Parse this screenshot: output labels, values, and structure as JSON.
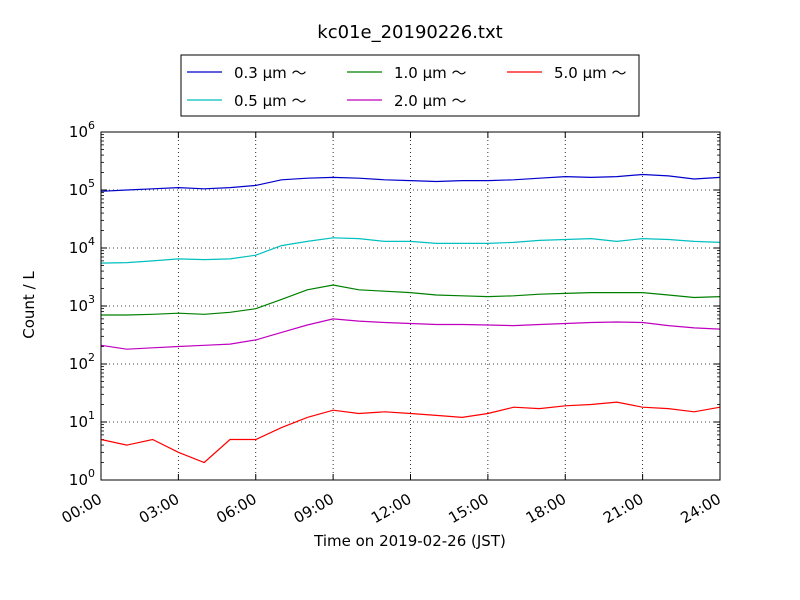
{
  "chart_data": {
    "type": "line",
    "title": "kc01e_20190226.txt",
    "xlabel": "Time on 2019-02-26 (JST)",
    "ylabel": "Count / L",
    "yscale": "log",
    "ylim": [
      1,
      1000000
    ],
    "xlim": [
      "00:00",
      "24:00"
    ],
    "x_ticks": [
      "00:00",
      "03:00",
      "06:00",
      "09:00",
      "12:00",
      "15:00",
      "18:00",
      "21:00",
      "24:00"
    ],
    "y_ticks": [
      {
        "base": "10",
        "exp": "0"
      },
      {
        "base": "10",
        "exp": "1"
      },
      {
        "base": "10",
        "exp": "2"
      },
      {
        "base": "10",
        "exp": "3"
      },
      {
        "base": "10",
        "exp": "4"
      },
      {
        "base": "10",
        "exp": "5"
      },
      {
        "base": "10",
        "exp": "6"
      }
    ],
    "grid": true,
    "legend_position": "top-center",
    "x": [
      "00:00",
      "01:00",
      "02:00",
      "03:00",
      "04:00",
      "05:00",
      "06:00",
      "07:00",
      "08:00",
      "09:00",
      "10:00",
      "11:00",
      "12:00",
      "13:00",
      "14:00",
      "15:00",
      "16:00",
      "17:00",
      "18:00",
      "19:00",
      "20:00",
      "21:00",
      "22:00",
      "23:00",
      "24:00"
    ],
    "series": [
      {
        "name": "0.3 μm 〜",
        "color": "#0000cc",
        "values": [
          95000,
          100000,
          105000,
          110000,
          105000,
          110000,
          120000,
          150000,
          160000,
          165000,
          160000,
          150000,
          145000,
          140000,
          145000,
          145000,
          150000,
          160000,
          170000,
          165000,
          170000,
          185000,
          175000,
          155000,
          165000
        ]
      },
      {
        "name": "0.5 μm 〜",
        "color": "#00bfbf",
        "values": [
          5500,
          5600,
          6000,
          6500,
          6300,
          6500,
          7500,
          11000,
          13000,
          15000,
          14500,
          13000,
          13000,
          12000,
          12000,
          12000,
          12500,
          13500,
          14000,
          14500,
          13000,
          14500,
          14000,
          13000,
          12500
        ]
      },
      {
        "name": "1.0 μm 〜",
        "color": "#008000",
        "values": [
          700,
          700,
          720,
          750,
          720,
          780,
          900,
          1300,
          1900,
          2300,
          1900,
          1800,
          1700,
          1550,
          1500,
          1450,
          1500,
          1600,
          1650,
          1700,
          1700,
          1700,
          1550,
          1400,
          1450
        ]
      },
      {
        "name": "2.0 μm 〜",
        "color": "#bf00bf",
        "values": [
          210,
          180,
          190,
          200,
          210,
          220,
          260,
          350,
          470,
          600,
          550,
          520,
          500,
          480,
          480,
          470,
          460,
          480,
          500,
          520,
          530,
          520,
          460,
          420,
          400
        ]
      },
      {
        "name": "5.0 μm 〜",
        "color": "#ff0000",
        "values": [
          5,
          4,
          5,
          3,
          2,
          5,
          5,
          8,
          12,
          16,
          14,
          15,
          14,
          13,
          12,
          14,
          18,
          17,
          19,
          20,
          22,
          18,
          17,
          15,
          18
        ]
      }
    ]
  }
}
